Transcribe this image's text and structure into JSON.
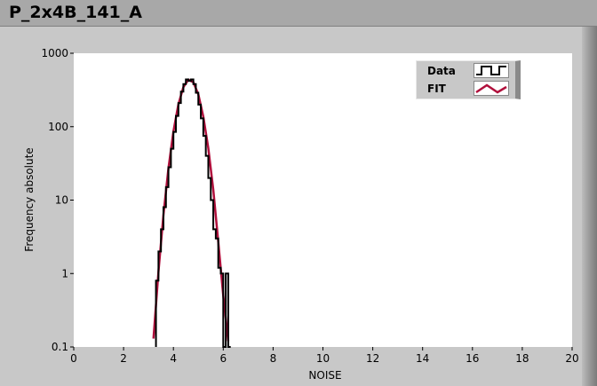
{
  "window": {
    "title": "P_2x4B_141_A"
  },
  "chart_data": {
    "type": "line",
    "title": "",
    "xlabel": "NOISE",
    "ylabel": "Frequency absolute",
    "xlim": [
      0,
      20
    ],
    "ylim": [
      0.1,
      1000
    ],
    "yscale": "log",
    "grid": false,
    "legend_position": "top-right",
    "x_ticks": [
      "0",
      "2",
      "4",
      "6",
      "8",
      "10",
      "12",
      "14",
      "16",
      "18",
      "20"
    ],
    "y_ticks": [
      "0.1",
      "1",
      "10",
      "100",
      "1000"
    ],
    "series": [
      {
        "name": "Data",
        "style": "step",
        "color": "#000000",
        "bin_edges": [
          3.3,
          3.4,
          3.5,
          3.6,
          3.7,
          3.8,
          3.9,
          4.0,
          4.1,
          4.2,
          4.3,
          4.4,
          4.5,
          4.6,
          4.7,
          4.8,
          4.9,
          5.0,
          5.1,
          5.2,
          5.3,
          5.4,
          5.5,
          5.6,
          5.7,
          5.8,
          5.9,
          6.0,
          6.1,
          6.2,
          6.3
        ],
        "values": [
          0.8,
          2,
          4,
          8,
          15,
          28,
          50,
          85,
          140,
          210,
          300,
          380,
          440,
          420,
          440,
          380,
          290,
          200,
          130,
          75,
          40,
          20,
          10,
          4,
          3,
          1.2,
          1,
          0,
          1,
          0
        ]
      },
      {
        "name": "FIT",
        "style": "line",
        "color": "#b0103c",
        "x": [
          3.2,
          3.4,
          3.6,
          3.8,
          4.0,
          4.2,
          4.4,
          4.6,
          4.8,
          5.0,
          5.2,
          5.4,
          5.6,
          5.8,
          6.0,
          6.2
        ],
        "y": [
          0.13,
          1.06,
          6.3,
          27,
          86,
          202,
          346,
          436,
          403,
          275,
          137,
          51,
          13.8,
          2.7,
          0.5,
          0.12
        ]
      }
    ]
  }
}
